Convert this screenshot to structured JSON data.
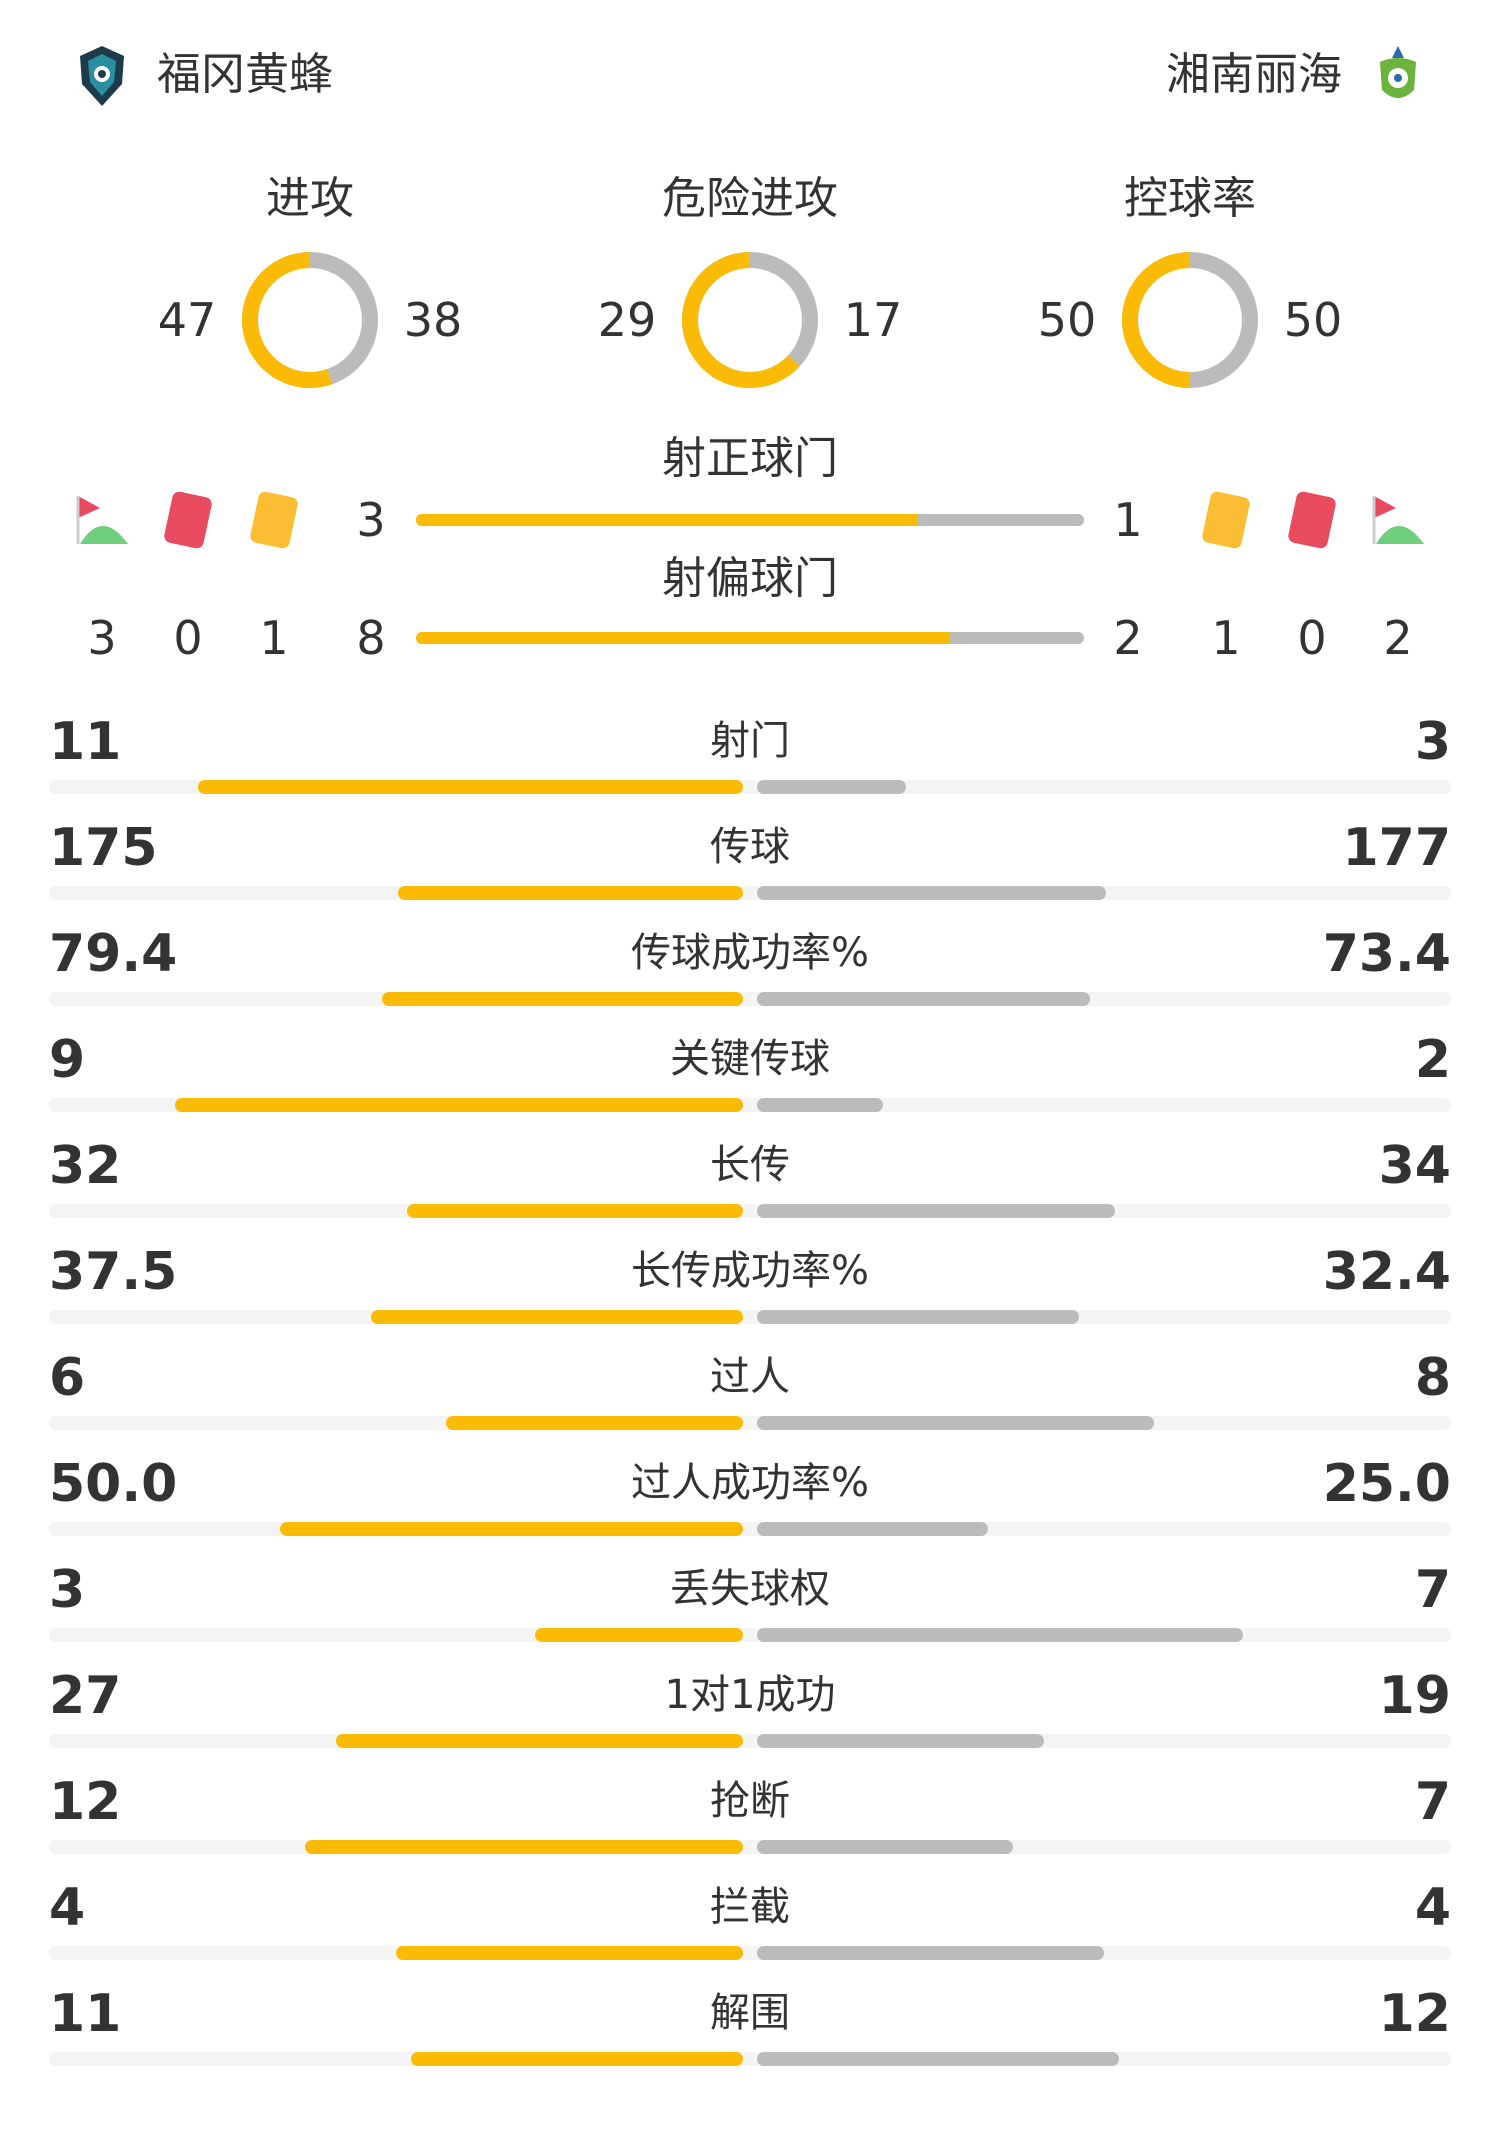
{
  "header": {
    "home": {
      "name": "福冈黄蜂",
      "logo": "avispa-fukuoka-crest-icon"
    },
    "away": {
      "name": "湘南丽海",
      "logo": "shonan-bellmare-crest-icon"
    }
  },
  "colors": {
    "home": "#fbbb05",
    "away": "#bbbbbb",
    "track": "#f4f4f4"
  },
  "donuts": [
    {
      "title": "进攻",
      "home": 47,
      "away": 38
    },
    {
      "title": "危险进攻",
      "home": 29,
      "away": 17
    },
    {
      "title": "控球率",
      "home": 50,
      "away": 50
    }
  ],
  "shots_on": {
    "title": "射正球门",
    "home": 3,
    "away": 1
  },
  "shots_off": {
    "title": "射偏球门",
    "home": 8,
    "away": 2
  },
  "discipline": {
    "home": {
      "corners": 3,
      "red_cards": 0,
      "yellow_cards": 1
    },
    "away": {
      "corners": 2,
      "red_cards": 0,
      "yellow_cards": 1
    }
  },
  "stats": [
    {
      "label": "射门",
      "home": "11",
      "away": "3"
    },
    {
      "label": "传球",
      "home": "175",
      "away": "177"
    },
    {
      "label": "传球成功率%",
      "home": "79.4",
      "away": "73.4"
    },
    {
      "label": "关键传球",
      "home": "9",
      "away": "2"
    },
    {
      "label": "长传",
      "home": "32",
      "away": "34"
    },
    {
      "label": "长传成功率%",
      "home": "37.5",
      "away": "32.4"
    },
    {
      "label": "过人",
      "home": "6",
      "away": "8"
    },
    {
      "label": "过人成功率%",
      "home": "50.0",
      "away": "25.0"
    },
    {
      "label": "丢失球权",
      "home": "3",
      "away": "7"
    },
    {
      "label": "1对1成功",
      "home": "27",
      "away": "19"
    },
    {
      "label": "抢断",
      "home": "12",
      "away": "7"
    },
    {
      "label": "拦截",
      "home": "4",
      "away": "4"
    },
    {
      "label": "解围",
      "home": "11",
      "away": "12"
    }
  ]
}
